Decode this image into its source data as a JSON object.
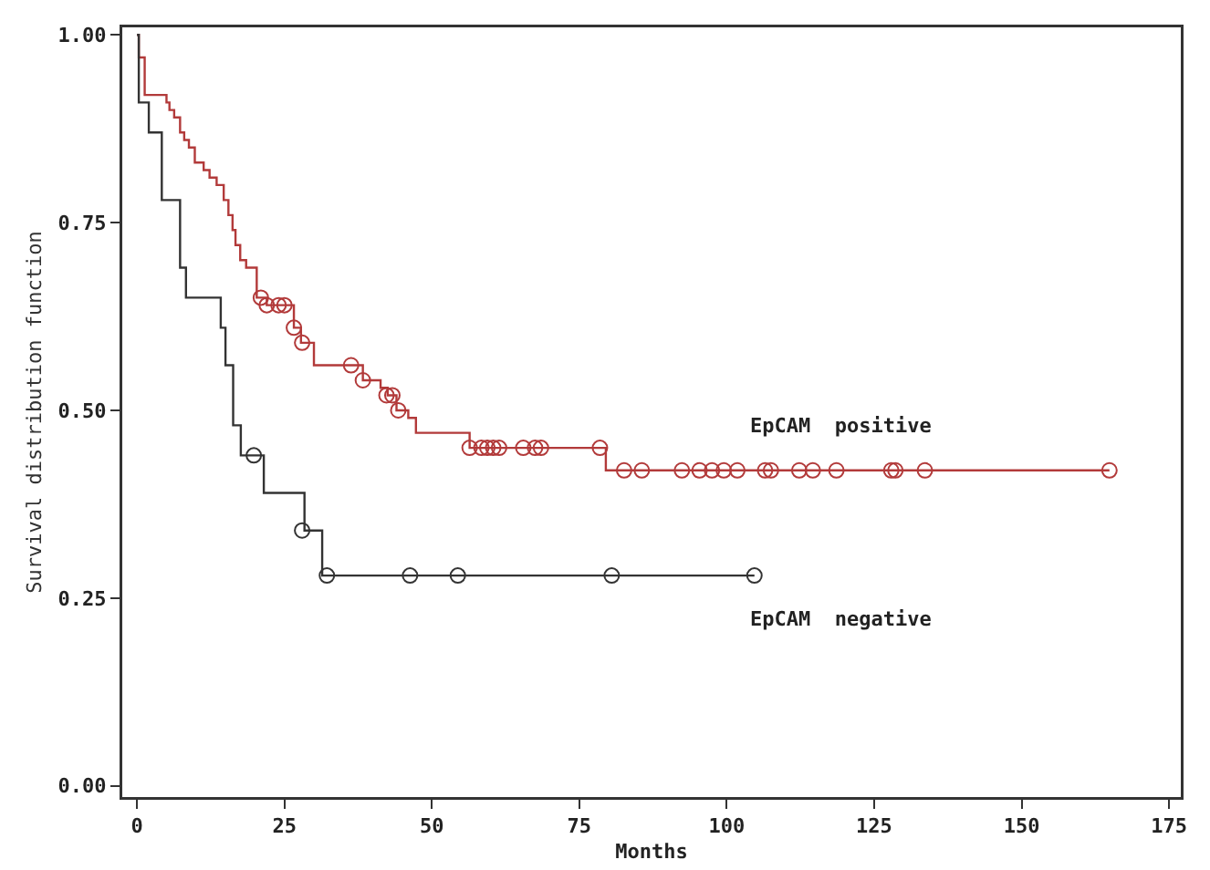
{
  "chart_data": {
    "type": "step",
    "xlabel": "Months",
    "ylabel": "Survival distribution function",
    "xlim": [
      -2.5,
      177
    ],
    "xticks": [
      0,
      25,
      50,
      75,
      100,
      125,
      150,
      175
    ],
    "ylim": [
      -0.015,
      1.01
    ],
    "yticks": [
      {
        "value": 0,
        "label": "0.00"
      },
      {
        "value": 0.25,
        "label": "0.25"
      },
      {
        "value": 0.5,
        "label": "0.50"
      },
      {
        "value": 0.75,
        "label": "0.75"
      },
      {
        "value": 1,
        "label": "1.00"
      }
    ],
    "series": [
      {
        "name": "EpCAM  positive",
        "color": "#b23a3a",
        "marker": "none",
        "x": [
          0,
          0.3,
          1.3,
          5,
          5.5,
          6.3,
          7.3,
          8,
          8.8,
          9.8,
          11.3,
          12.3,
          13.5,
          14.7,
          15.5,
          16.2,
          16.7,
          17.5,
          18.5,
          20.3,
          22,
          26.6,
          27.8,
          30,
          38.3,
          41.3,
          42.5,
          44,
          46,
          47.3,
          56.4,
          79.5,
          164.9
        ],
        "values": [
          1,
          0.97,
          0.92,
          0.91,
          0.9,
          0.89,
          0.87,
          0.86,
          0.85,
          0.83,
          0.82,
          0.81,
          0.8,
          0.78,
          0.76,
          0.74,
          0.72,
          0.7,
          0.69,
          0.65,
          0.64,
          0.61,
          0.59,
          0.56,
          0.54,
          0.53,
          0.52,
          0.5,
          0.49,
          0.47,
          0.45,
          0.42,
          0.42
        ]
      },
      {
        "type": "scatter",
        "color": "#b23a3a",
        "marker": "circle",
        "x": [
          21,
          22,
          24,
          25,
          26.6,
          28,
          36.3,
          38.3,
          42.3,
          43.3,
          44.3,
          56.4,
          58.4,
          59.4,
          60.4,
          61.4,
          65.5,
          67.5,
          68.5,
          78.5,
          82.6,
          85.6,
          92.4,
          95.4,
          97.5,
          99.5,
          101.8,
          106.5,
          107.5,
          112.3,
          114.6,
          118.6,
          127.9,
          128.6,
          133.6,
          164.9
        ],
        "values": [
          0.65,
          0.64,
          0.64,
          0.64,
          0.61,
          0.59,
          0.56,
          0.54,
          0.52,
          0.52,
          0.5,
          0.45,
          0.45,
          0.45,
          0.45,
          0.45,
          0.45,
          0.45,
          0.45,
          0.45,
          0.42,
          0.42,
          0.42,
          0.42,
          0.42,
          0.42,
          0.42,
          0.42,
          0.42,
          0.42,
          0.42,
          0.42,
          0.42,
          0.42,
          0.42,
          0.42
        ]
      },
      {
        "name": "EpCAM  negative",
        "color": "#333333",
        "marker": "none",
        "x": [
          0,
          0.3,
          2,
          4.2,
          7.3,
          8.3,
          14.2,
          15,
          16.3,
          17.6,
          21.5,
          28.4,
          31.4,
          104.7
        ],
        "values": [
          1,
          0.91,
          0.87,
          0.78,
          0.69,
          0.65,
          0.61,
          0.56,
          0.48,
          0.44,
          0.39,
          0.34,
          0.28,
          0.28
        ]
      },
      {
        "type": "scatter",
        "color": "#333333",
        "marker": "circle",
        "x": [
          19.8,
          28,
          32.2,
          46.3,
          54.4,
          80.5,
          104.7
        ],
        "values": [
          0.44,
          0.34,
          0.28,
          0.28,
          0.28,
          0.28,
          0.28
        ]
      }
    ]
  }
}
